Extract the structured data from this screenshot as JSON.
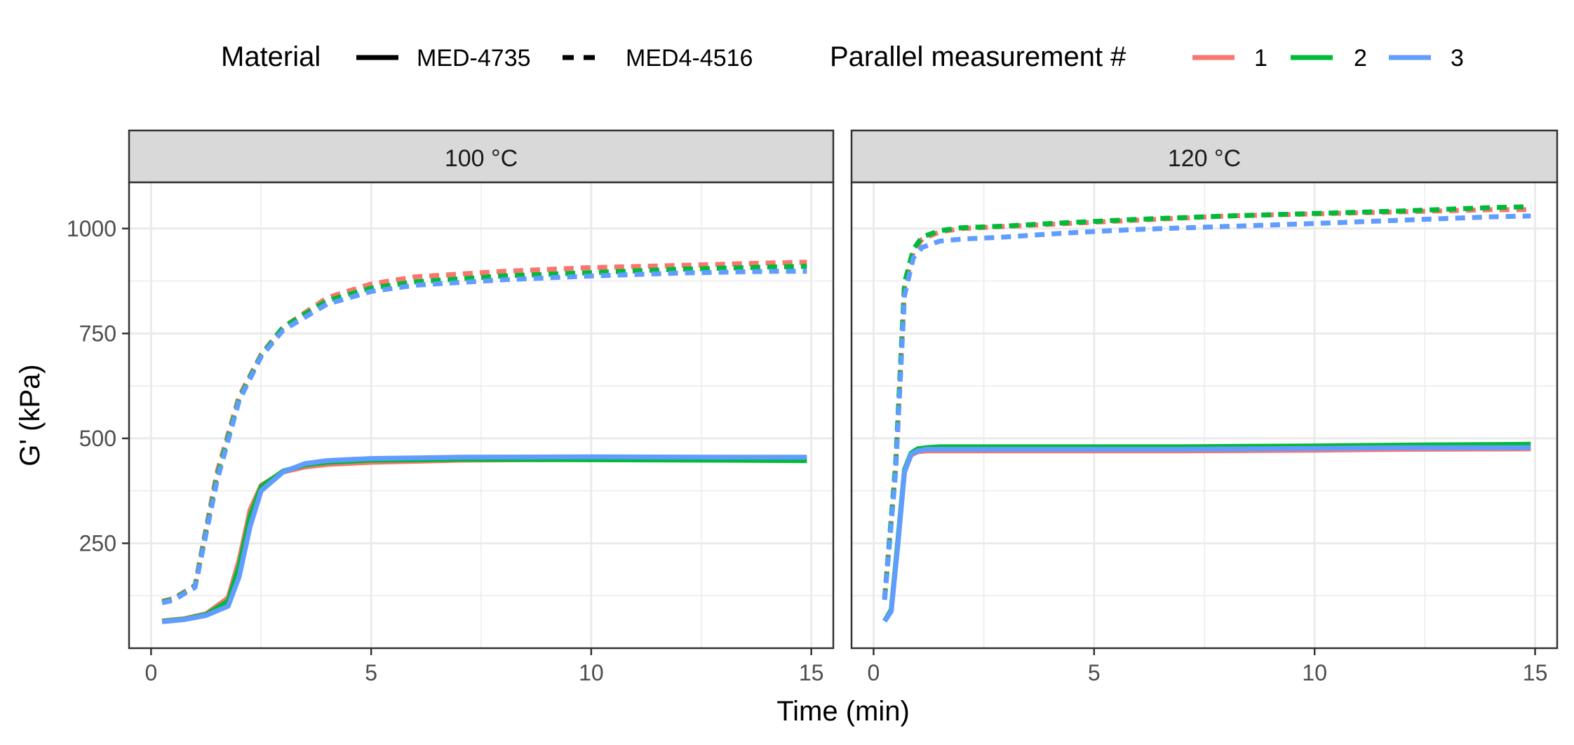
{
  "chart_data": {
    "type": "line",
    "xlabel": "Time (min)",
    "ylabel": "G' (kPa)",
    "xlim": [
      -0.5,
      15.5
    ],
    "ylim": [
      0,
      1110
    ],
    "xticks": [
      0,
      5,
      10,
      15
    ],
    "yticks": [
      250,
      500,
      750,
      1000
    ],
    "grid": true,
    "legend_position": "top",
    "legend": {
      "linetype_title": "Material",
      "linetype_entries": [
        {
          "label": "MED-4735",
          "dash": "solid"
        },
        {
          "label": "MED4-4516",
          "dash": "dashed"
        }
      ],
      "color_title": "Parallel measurement #",
      "color_entries": [
        {
          "label": "1",
          "color": "#F8766D"
        },
        {
          "label": "2",
          "color": "#00BA38"
        },
        {
          "label": "3",
          "color": "#619CFF"
        }
      ]
    },
    "panels": [
      {
        "label": "100 °C",
        "series": [
          {
            "material": "MED4-4516",
            "measurement": "1",
            "x": [
              0.25,
              0.5,
              1,
              1.5,
              2,
              2.5,
              3,
              4,
              5,
              6,
              8,
              10,
              12,
              14,
              14.9
            ],
            "y": [
              112,
              118,
              150,
              420,
              600,
              700,
              765,
              835,
              868,
              885,
              898,
              907,
              912,
              918,
              920
            ]
          },
          {
            "material": "MED4-4516",
            "measurement": "2",
            "x": [
              0.25,
              0.5,
              1,
              1.5,
              2,
              2.5,
              3,
              4,
              5,
              6,
              8,
              10,
              12,
              14,
              14.9
            ],
            "y": [
              110,
              116,
              148,
              410,
              595,
              698,
              765,
              828,
              858,
              873,
              887,
              895,
              903,
              908,
              910
            ]
          },
          {
            "material": "MED4-4516",
            "measurement": "3",
            "x": [
              0.25,
              0.5,
              1,
              1.5,
              2,
              2.5,
              3,
              4,
              5,
              6,
              8,
              10,
              12,
              14,
              14.9
            ],
            "y": [
              108,
              114,
              145,
              400,
              590,
              695,
              758,
              820,
              850,
              865,
              878,
              887,
              894,
              898,
              898
            ]
          },
          {
            "material": "MED-4735",
            "measurement": "1",
            "x": [
              0.25,
              0.75,
              1.25,
              1.75,
              2,
              2.25,
              2.5,
              3,
              3.5,
              4,
              5,
              7,
              10,
              13,
              14.9
            ],
            "y": [
              65,
              70,
              82,
              120,
              210,
              330,
              388,
              420,
              432,
              438,
              443,
              448,
              450,
              450,
              450
            ]
          },
          {
            "material": "MED-4735",
            "measurement": "2",
            "x": [
              0.25,
              0.75,
              1.25,
              1.75,
              2,
              2.25,
              2.5,
              3,
              3.5,
              4,
              5,
              7,
              10,
              13,
              14.9
            ],
            "y": [
              64,
              69,
              80,
              112,
              195,
              315,
              385,
              422,
              437,
              443,
              448,
              450,
              449,
              448,
              447
            ]
          },
          {
            "material": "MED-4735",
            "measurement": "3",
            "x": [
              0.25,
              0.75,
              1.25,
              1.75,
              2,
              2.25,
              2.5,
              3,
              3.5,
              4,
              5,
              7,
              10,
              13,
              14.9
            ],
            "y": [
              63,
              68,
              78,
              100,
              170,
              290,
              375,
              420,
              440,
              447,
              452,
              455,
              456,
              455,
              455
            ]
          }
        ]
      },
      {
        "label": "120 °C",
        "series": [
          {
            "material": "MED4-4516",
            "measurement": "1",
            "x": [
              0.25,
              0.5,
              0.7,
              0.9,
              1.1,
              1.5,
              2,
              3,
              4,
              5,
              6,
              8,
              10,
              12,
              14,
              14.9
            ],
            "y": [
              120,
              430,
              860,
              945,
              975,
              992,
              1000,
              1005,
              1010,
              1015,
              1020,
              1030,
              1035,
              1040,
              1045,
              1045
            ]
          },
          {
            "material": "MED4-4516",
            "measurement": "2",
            "x": [
              0.25,
              0.5,
              0.7,
              0.9,
              1.1,
              1.5,
              2,
              3,
              4,
              5,
              6,
              8,
              10,
              12,
              14,
              14.9
            ],
            "y": [
              118,
              440,
              870,
              950,
              980,
              995,
              1002,
              1006,
              1012,
              1017,
              1022,
              1030,
              1036,
              1042,
              1050,
              1052
            ]
          },
          {
            "material": "MED4-4516",
            "measurement": "3",
            "x": [
              0.25,
              0.5,
              0.7,
              0.9,
              1.1,
              1.5,
              2,
              3,
              4,
              5,
              6,
              8,
              10,
              12,
              14,
              14.9
            ],
            "y": [
              115,
              420,
              840,
              930,
              955,
              970,
              975,
              980,
              987,
              993,
              998,
              1005,
              1012,
              1020,
              1028,
              1030
            ]
          },
          {
            "material": "MED-4735",
            "measurement": "1",
            "x": [
              0.25,
              0.4,
              0.55,
              0.7,
              0.85,
              1,
              1.2,
              1.5,
              2,
              3,
              5,
              7,
              10,
              12,
              14.9
            ],
            "y": [
              65,
              90,
              250,
              420,
              460,
              468,
              470,
              470,
              470,
              470,
              470,
              470,
              472,
              474,
              475
            ]
          },
          {
            "material": "MED-4735",
            "measurement": "2",
            "x": [
              0.25,
              0.4,
              0.55,
              0.7,
              0.85,
              1,
              1.2,
              1.5,
              2,
              3,
              5,
              7,
              10,
              12,
              14.9
            ],
            "y": [
              65,
              92,
              255,
              425,
              465,
              475,
              478,
              480,
              480,
              480,
              480,
              480,
              482,
              484,
              486
            ]
          },
          {
            "material": "MED-4735",
            "measurement": "3",
            "x": [
              0.25,
              0.4,
              0.55,
              0.7,
              0.85,
              1,
              1.2,
              1.5,
              2,
              3,
              5,
              7,
              10,
              12,
              14.9
            ],
            "y": [
              64,
              88,
              245,
              420,
              462,
              470,
              474,
              474,
              474,
              474,
              474,
              474,
              476,
              478,
              478
            ]
          }
        ]
      }
    ]
  }
}
